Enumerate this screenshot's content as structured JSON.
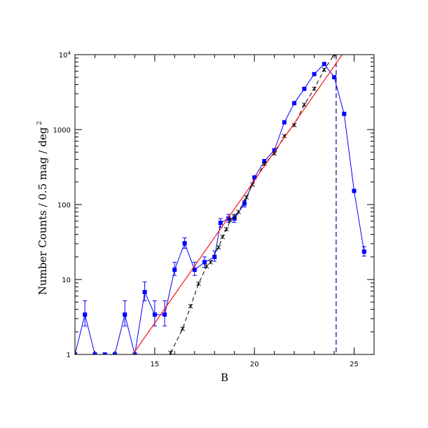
{
  "chart_data": {
    "type": "scatter",
    "title": "",
    "xlabel": "B",
    "ylabel": "Number Counts / 0.5 mag / deg",
    "ylabel_exponent": "2",
    "xlim": [
      11.0,
      26.0
    ],
    "ylim": [
      1,
      10000
    ],
    "yscale": "log",
    "grid": false,
    "x_ticks": [
      {
        "value": 15,
        "label": "15"
      },
      {
        "value": 20,
        "label": "20"
      },
      {
        "value": 25,
        "label": "25"
      }
    ],
    "y_ticks": [
      {
        "value": 1,
        "label": "1"
      },
      {
        "value": 10,
        "label": "10"
      },
      {
        "value": 100,
        "label": "100"
      },
      {
        "value": 1000,
        "label": "1000"
      }
    ],
    "y_top_tick": {
      "value": 10000,
      "base": "10",
      "exponent": "4"
    },
    "colors": {
      "observed": "#0000ff",
      "fit": "#ff0000",
      "model": "#000000",
      "limit": "#00008b"
    },
    "series": [
      {
        "role": "observed",
        "marker": "filled-square",
        "line": "solid",
        "points": [
          {
            "x": 11.0,
            "y": 1.0
          },
          {
            "x": 11.5,
            "y": 3.4,
            "err_low": 2.4,
            "err_high": 5.2
          },
          {
            "x": 12.0,
            "y": 1.0
          },
          {
            "x": 12.5,
            "y": 1.0
          },
          {
            "x": 13.0,
            "y": 1.0
          },
          {
            "x": 13.5,
            "y": 3.4,
            "err_low": 2.4,
            "err_high": 5.2
          },
          {
            "x": 14.0,
            "y": 1.0
          },
          {
            "x": 14.5,
            "y": 6.8,
            "err_low": 5.2,
            "err_high": 9.3
          },
          {
            "x": 15.0,
            "y": 3.4,
            "err_low": 2.4,
            "err_high": 5.2
          },
          {
            "x": 15.5,
            "y": 3.4,
            "err_low": 2.4,
            "err_high": 5.2
          },
          {
            "x": 16.0,
            "y": 13.5,
            "err_low": 11.3,
            "err_high": 17.0
          },
          {
            "x": 16.5,
            "y": 30.5,
            "err_low": 26.0,
            "err_high": 36.0
          },
          {
            "x": 17.0,
            "y": 13.5,
            "err_low": 11.3,
            "err_high": 17.0
          },
          {
            "x": 17.5,
            "y": 17.0,
            "err_low": 14.5,
            "err_high": 20.0
          },
          {
            "x": 18.0,
            "y": 20.0,
            "err_low": 17.5,
            "err_high": 24.0
          },
          {
            "x": 18.3,
            "y": 57.0,
            "err_low": 50.0,
            "err_high": 65.0
          },
          {
            "x": 18.7,
            "y": 65.0,
            "err_low": 58.0,
            "err_high": 74.0
          },
          {
            "x": 19.0,
            "y": 65.0,
            "err_low": 58.0,
            "err_high": 74.0
          },
          {
            "x": 19.5,
            "y": 103.0,
            "err_low": 93.0,
            "err_high": 113.0
          },
          {
            "x": 20.0,
            "y": 230.0
          },
          {
            "x": 20.5,
            "y": 380.0
          },
          {
            "x": 21.0,
            "y": 530.0
          },
          {
            "x": 21.5,
            "y": 1250.0
          },
          {
            "x": 22.0,
            "y": 2250.0
          },
          {
            "x": 22.5,
            "y": 3500.0
          },
          {
            "x": 23.0,
            "y": 5500.0
          },
          {
            "x": 23.5,
            "y": 7500.0
          },
          {
            "x": 24.0,
            "y": 5000.0
          },
          {
            "x": 24.5,
            "y": 1620.0
          },
          {
            "x": 25.0,
            "y": 152.0
          },
          {
            "x": 25.5,
            "y": 23.5,
            "err_low": 20.5,
            "err_high": 27.5
          }
        ]
      },
      {
        "role": "model",
        "marker": "asterisk",
        "line": "dashed",
        "points": [
          {
            "x": 15.8,
            "y": 1.05
          },
          {
            "x": 16.4,
            "y": 2.2
          },
          {
            "x": 16.8,
            "y": 4.4
          },
          {
            "x": 17.2,
            "y": 8.8
          },
          {
            "x": 17.6,
            "y": 15.0
          },
          {
            "x": 17.8,
            "y": 17.0
          },
          {
            "x": 18.2,
            "y": 27.0
          },
          {
            "x": 18.4,
            "y": 37.0
          },
          {
            "x": 18.6,
            "y": 47.0
          },
          {
            "x": 18.8,
            "y": 62.0
          },
          {
            "x": 19.0,
            "y": 69.0
          },
          {
            "x": 19.2,
            "y": 80.0
          },
          {
            "x": 19.6,
            "y": 125.0
          },
          {
            "x": 19.9,
            "y": 185.0
          },
          {
            "x": 20.5,
            "y": 350.0
          },
          {
            "x": 21.0,
            "y": 480.0
          },
          {
            "x": 21.5,
            "y": 820.0
          },
          {
            "x": 22.0,
            "y": 1150.0
          },
          {
            "x": 22.5,
            "y": 2150.0
          },
          {
            "x": 23.0,
            "y": 3500.0
          },
          {
            "x": 23.5,
            "y": 6300.0
          },
          {
            "x": 24.0,
            "y": 10000.0
          }
        ]
      },
      {
        "role": "fit",
        "marker": "none",
        "line": "solid",
        "points": [
          {
            "x": 13.9,
            "y": 1.0
          },
          {
            "x": 24.4,
            "y": 10000.0
          }
        ]
      }
    ],
    "reference_lines": [
      {
        "role": "limit",
        "orientation": "vertical",
        "x": 24.1,
        "style": "dashed"
      }
    ]
  }
}
